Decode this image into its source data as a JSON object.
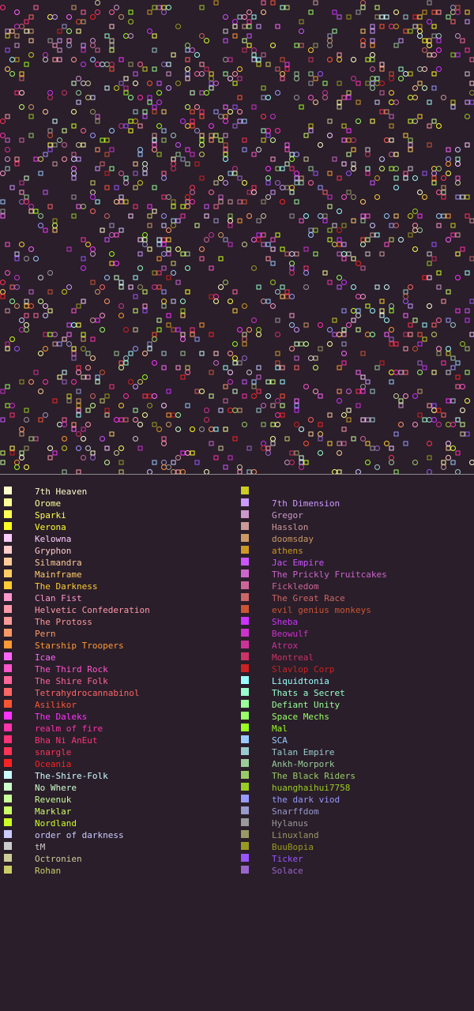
{
  "map": {
    "background": "#2a1e2a",
    "divider_color": "#8a8a8a",
    "mark_types": [
      "square",
      "circle"
    ]
  },
  "legend": {
    "left": [
      {
        "label": "7th Heaven",
        "color": "#ffffcc"
      },
      {
        "label": "Orome",
        "color": "#ffff99"
      },
      {
        "label": "Sparki",
        "color": "#ffff55"
      },
      {
        "label": "Verona",
        "color": "#ffff22"
      },
      {
        "label": "Kelowna",
        "color": "#ffccff"
      },
      {
        "label": "Gryphon",
        "color": "#ffcccc"
      },
      {
        "label": "Silmandra",
        "color": "#ffcc99"
      },
      {
        "label": "Mainframe",
        "color": "#ffcc66"
      },
      {
        "label": "The Darkness",
        "color": "#ffcc33"
      },
      {
        "label": "Clan Fist",
        "color": "#ff99cc"
      },
      {
        "label": "Helvetic Confederation",
        "color": "#ff99aa"
      },
      {
        "label": "The Protoss",
        "color": "#ff9999"
      },
      {
        "label": "Pern",
        "color": "#ff9966"
      },
      {
        "label": "Starship Troopers",
        "color": "#ff9933"
      },
      {
        "label": "Icae",
        "color": "#ff66ff"
      },
      {
        "label": "The Third Rock",
        "color": "#ff55cc"
      },
      {
        "label": "The Shire Folk",
        "color": "#ff6699"
      },
      {
        "label": "Tetrahydrocannabinol",
        "color": "#ff6666"
      },
      {
        "label": "Asilikor",
        "color": "#ff5533"
      },
      {
        "label": "The Daleks",
        "color": "#ff33ff"
      },
      {
        "label": "realm of fire",
        "color": "#ff33aa"
      },
      {
        "label": "Bha Ni AnEut",
        "color": "#ff3377"
      },
      {
        "label": "snargle",
        "color": "#ff3355"
      },
      {
        "label": "Oceania",
        "color": "#ff2222"
      },
      {
        "label": "The-Shire-Folk",
        "color": "#ccffff"
      },
      {
        "label": "No Where",
        "color": "#ccffcc"
      },
      {
        "label": "Revenuk",
        "color": "#ccff99"
      },
      {
        "label": "Marklar",
        "color": "#ccff66"
      },
      {
        "label": "Nordland",
        "color": "#ccff22"
      },
      {
        "label": "order of darkness",
        "color": "#ccccff"
      },
      {
        "label": "tM",
        "color": "#cccccc"
      },
      {
        "label": "Octronien",
        "color": "#cccc99"
      },
      {
        "label": "Rohan",
        "color": "#cccc66"
      }
    ],
    "right": [
      {
        "label": "",
        "color": "#cccc22"
      },
      {
        "label": "7th Dimension",
        "color": "#cc99ff"
      },
      {
        "label": "Gregor",
        "color": "#cc99cc"
      },
      {
        "label": "Hasslon",
        "color": "#cc9999"
      },
      {
        "label": "doomsday",
        "color": "#cc9966"
      },
      {
        "label": "athens",
        "color": "#cc9922"
      },
      {
        "label": "Jac Empire",
        "color": "#cc55ff"
      },
      {
        "label": "The Prickly Fruitcakes",
        "color": "#cc66cc"
      },
      {
        "label": "Fickledom",
        "color": "#cc6699"
      },
      {
        "label": "The Great Race",
        "color": "#cc6666"
      },
      {
        "label": "evil genius monkeys",
        "color": "#cc5533"
      },
      {
        "label": "Sheba",
        "color": "#cc33ff"
      },
      {
        "label": "Beowulf",
        "color": "#cc33cc"
      },
      {
        "label": "Atrox",
        "color": "#cc3399"
      },
      {
        "label": "Montreal",
        "color": "#cc3366"
      },
      {
        "label": "Slavlop Corp",
        "color": "#cc2222"
      },
      {
        "label": "Liquidtonia",
        "color": "#99ffff"
      },
      {
        "label": "Thats a Secret",
        "color": "#99ffcc"
      },
      {
        "label": "Defiant Unity",
        "color": "#99ff99"
      },
      {
        "label": "Space Mechs",
        "color": "#99ff66"
      },
      {
        "label": "Mal",
        "color": "#99ff22"
      },
      {
        "label": "SCA",
        "color": "#99ccff"
      },
      {
        "label": "Talan Empire",
        "color": "#99cccc"
      },
      {
        "label": "Ankh-Morpork",
        "color": "#99cc99"
      },
      {
        "label": "The Black Riders",
        "color": "#99cc66"
      },
      {
        "label": "huanghaihui7758",
        "color": "#99cc22"
      },
      {
        "label": "the dark viod",
        "color": "#9999ff"
      },
      {
        "label": "Snarffdom",
        "color": "#9999cc"
      },
      {
        "label": "Hylanus",
        "color": "#999999"
      },
      {
        "label": "Linuxland",
        "color": "#999966"
      },
      {
        "label": "BuuBopia",
        "color": "#999922"
      },
      {
        "label": "Ticker",
        "color": "#9955ff"
      },
      {
        "label": "Solace",
        "color": "#9966cc"
      }
    ]
  }
}
